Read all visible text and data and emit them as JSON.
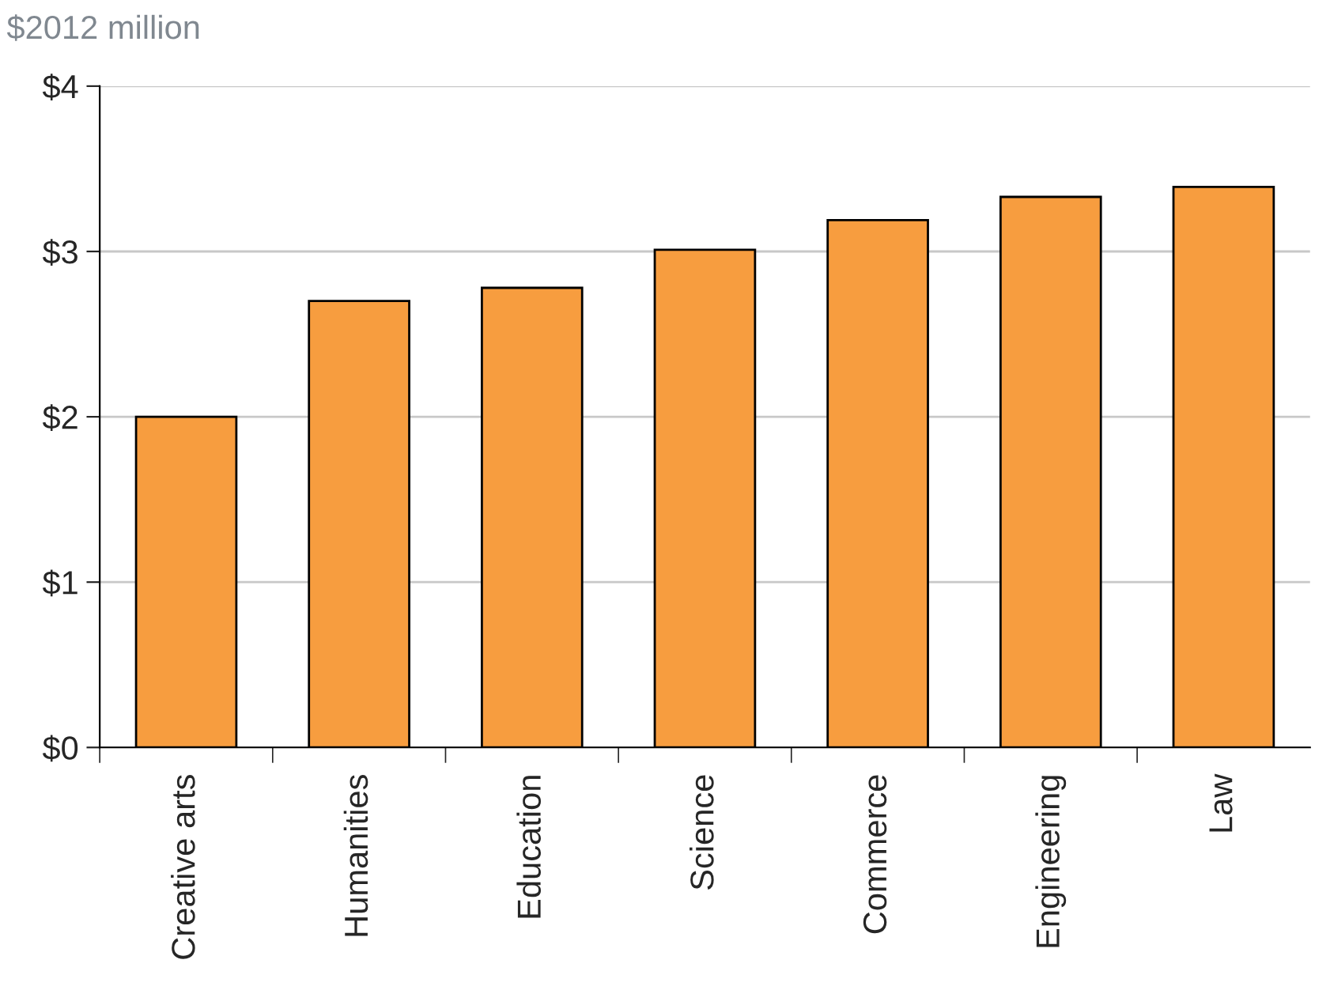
{
  "chart_data": {
    "type": "bar",
    "ylabel": "$2012 million",
    "categories": [
      "Creative arts",
      "Humanities",
      "Education",
      "Science",
      "Commerce",
      "Engineering",
      "Law"
    ],
    "values": [
      2.0,
      2.7,
      2.78,
      3.01,
      3.19,
      3.33,
      3.39
    ],
    "color": "#f79d3f",
    "ylim": [
      0,
      4
    ],
    "yticks": [
      {
        "value": 0,
        "label": "$0"
      },
      {
        "value": 1,
        "label": "$1"
      },
      {
        "value": 2,
        "label": "$2"
      },
      {
        "value": 3,
        "label": "$3"
      },
      {
        "value": 4,
        "label": "$4"
      }
    ],
    "grid": "y",
    "legend": false
  }
}
